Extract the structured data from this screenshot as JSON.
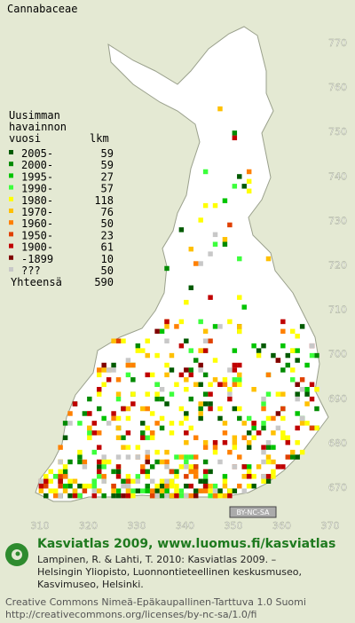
{
  "title": "Cannabaceae",
  "legend": {
    "heading": [
      "Uusimman",
      "havainnon",
      "vuosi"
    ],
    "count_heading": "lkm",
    "rows": [
      {
        "label": "2005-",
        "count": 59,
        "color": "#005a00"
      },
      {
        "label": "2000-",
        "count": 59,
        "color": "#008a00"
      },
      {
        "label": "1995-",
        "count": 27,
        "color": "#00c400"
      },
      {
        "label": "1990-",
        "count": 57,
        "color": "#3cff3c"
      },
      {
        "label": "1980-",
        "count": 118,
        "color": "#ffff00"
      },
      {
        "label": "1970-",
        "count": 76,
        "color": "#ffc000"
      },
      {
        "label": "1960-",
        "count": 50,
        "color": "#ff8000"
      },
      {
        "label": "1950-",
        "count": 23,
        "color": "#e04000"
      },
      {
        "label": "1900-",
        "count": 61,
        "color": "#c00000"
      },
      {
        "label": "-1899",
        "count": 10,
        "color": "#800000"
      },
      {
        "label": "???",
        "count": 50,
        "color": "#c8c8c8"
      }
    ],
    "total_label": "Yhteensä",
    "total": 590
  },
  "y_grid_labels": [
    770,
    760,
    750,
    740,
    730,
    720,
    710,
    700,
    690,
    680,
    670
  ],
  "x_grid_labels": [
    310,
    320,
    330,
    340,
    350,
    360,
    370
  ],
  "license_badge": "BY-NC-SA",
  "footer": {
    "headline": "Kasviatlas 2009, www.luomus.fi/kasviatlas",
    "citation": [
      "Lampinen, R. & Lahti, T. 2010: Kasviatlas 2009. –",
      "Helsingin Yliopisto, Luonnontieteellinen keskusmuseo,",
      "Kasvimuseo, Helsinki."
    ],
    "license": [
      "Creative Commons Nimeä-Epäkaupallinen-Tarttuva 1.0 Suomi",
      "http://creativecommons.org/licenses/by-nc-sa/1.0/fi"
    ]
  }
}
